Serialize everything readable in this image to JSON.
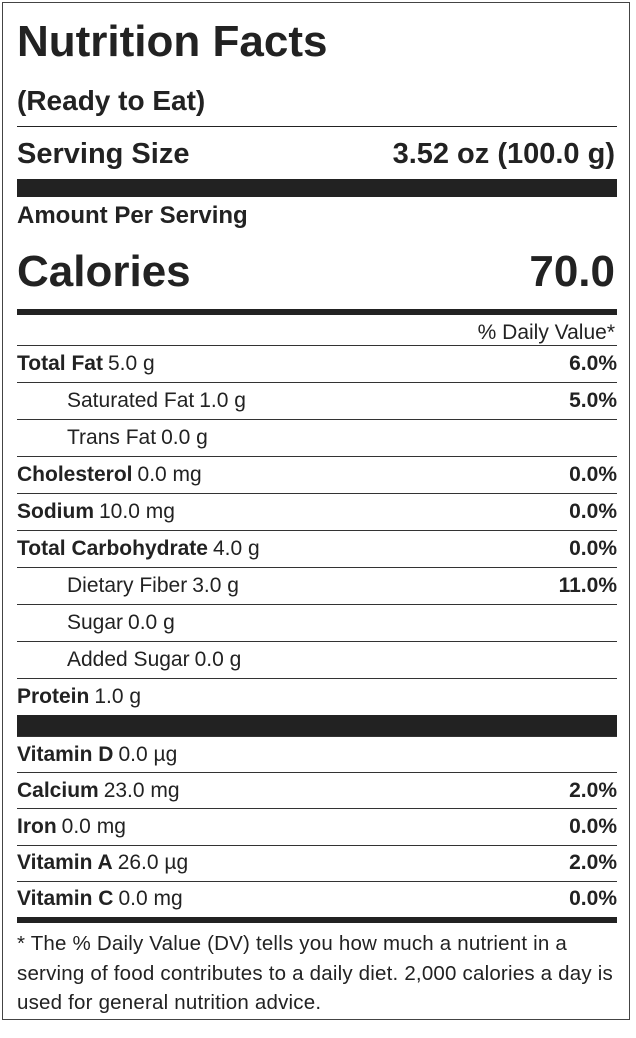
{
  "header": {
    "title": "Nutrition Facts",
    "subtitle": "(Ready to Eat)",
    "serving_label": "Serving Size",
    "serving_size": "3.52 oz (100.0 g)",
    "amount_per_serving": "Amount Per Serving",
    "calories_label": "Calories",
    "calories": "70.0",
    "dv_heading": "% Daily Value*"
  },
  "nutrients": [
    {
      "name": "Total Fat",
      "amount": "5.0 g",
      "dv": "6.0%",
      "sub": [
        {
          "name": "Saturated Fat",
          "amount": "1.0 g",
          "dv": "5.0%"
        },
        {
          "name": "Trans Fat",
          "amount": "0.0 g"
        }
      ]
    },
    {
      "name": "Cholesterol",
      "amount": "0.0 mg",
      "dv": "0.0%"
    },
    {
      "name": "Sodium",
      "amount": "10.0 mg",
      "dv": "0.0%"
    },
    {
      "name": "Total Carbohydrate",
      "amount": "4.0 g",
      "dv": "0.0%",
      "sub": [
        {
          "name": "Dietary Fiber",
          "amount": "3.0 g",
          "dv": "11.0%"
        },
        {
          "name": "Sugar",
          "amount": "0.0 g"
        },
        {
          "name": "Added Sugar",
          "amount": "0.0 g"
        }
      ]
    },
    {
      "name": "Protein",
      "amount": "1.0 g"
    }
  ],
  "vitamins": [
    {
      "name": "Vitamin D",
      "amount": "0.0 µg"
    },
    {
      "name": "Calcium",
      "amount": "23.0 mg",
      "dv": "2.0%"
    },
    {
      "name": "Iron",
      "amount": "0.0 mg",
      "dv": "0.0%"
    },
    {
      "name": "Vitamin A",
      "amount": "26.0 µg",
      "dv": "2.0%"
    },
    {
      "name": "Vitamin C",
      "amount": "0.0 mg",
      "dv": "0.0%"
    }
  ],
  "footnote": "* The % Daily Value (DV) tells you how much a nutrient in a serving of food contributes to a daily diet. 2,000 calories a day is used for general nutrition advice."
}
